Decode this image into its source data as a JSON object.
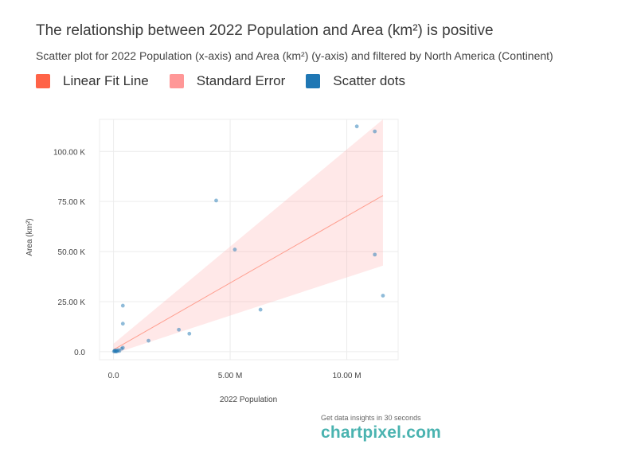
{
  "title": "The relationship between 2022 Population and Area (km²) is positive",
  "subtitle": "Scatter plot for 2022 Population (x-axis) and Area (km²) (y-axis) and filtered by North America (Continent)",
  "legend": [
    {
      "label": "Linear Fit Line",
      "color": "#ff6347"
    },
    {
      "label": "Standard Error",
      "color": "#ff9797"
    },
    {
      "label": "Scatter dots",
      "color": "#1f77b4"
    }
  ],
  "branding": {
    "tagline": "Get data insights in 30 seconds",
    "name": "chartpixel.com"
  },
  "chart_data": {
    "type": "scatter",
    "xlabel": "2022 Population",
    "ylabel": "Area (km²)",
    "xlim": [
      -0.6,
      12.2
    ],
    "ylim": [
      -4.0,
      116.0
    ],
    "x_unit": "M",
    "y_unit": "K",
    "x_ticks": [
      {
        "value": 0,
        "label": "0.0"
      },
      {
        "value": 5,
        "label": "5.00 M"
      },
      {
        "value": 10,
        "label": "10.00 M"
      }
    ],
    "y_ticks": [
      {
        "value": 0,
        "label": "0.0"
      },
      {
        "value": 25,
        "label": "25.00 K"
      },
      {
        "value": 50,
        "label": "50.00 K"
      },
      {
        "value": 75,
        "label": "75.00 K"
      },
      {
        "value": 100,
        "label": "100.00 K"
      }
    ],
    "grid": true,
    "points": [
      {
        "x": 10.43,
        "y": 112.5
      },
      {
        "x": 11.2,
        "y": 110.0
      },
      {
        "x": 4.4,
        "y": 75.5
      },
      {
        "x": 5.2,
        "y": 51.0
      },
      {
        "x": 11.2,
        "y": 48.5
      },
      {
        "x": 11.55,
        "y": 28.0
      },
      {
        "x": 0.4,
        "y": 23.0
      },
      {
        "x": 6.3,
        "y": 21.0
      },
      {
        "x": 0.4,
        "y": 14.0
      },
      {
        "x": 2.8,
        "y": 11.0
      },
      {
        "x": 3.25,
        "y": 9.0
      },
      {
        "x": 1.5,
        "y": 5.5
      },
      {
        "x": 0.4,
        "y": 2.0
      },
      {
        "x": 0.35,
        "y": 1.5
      },
      {
        "x": 0.2,
        "y": 0.8
      },
      {
        "x": 0.12,
        "y": 0.5
      },
      {
        "x": 0.05,
        "y": 0.3
      },
      {
        "x": 0.1,
        "y": 0.1
      },
      {
        "x": 0.02,
        "y": 0.2
      },
      {
        "x": 0.06,
        "y": 0.6
      },
      {
        "x": 0.15,
        "y": 0.2
      },
      {
        "x": 0.25,
        "y": 0.4
      }
    ],
    "fit_line": {
      "x": [
        0.0,
        11.55
      ],
      "y": [
        1.0,
        78.0
      ]
    },
    "standard_error": {
      "x": [
        0.0,
        11.55
      ],
      "upper": [
        4.0,
        116.0
      ],
      "lower": [
        -1.0,
        43.0
      ]
    }
  }
}
